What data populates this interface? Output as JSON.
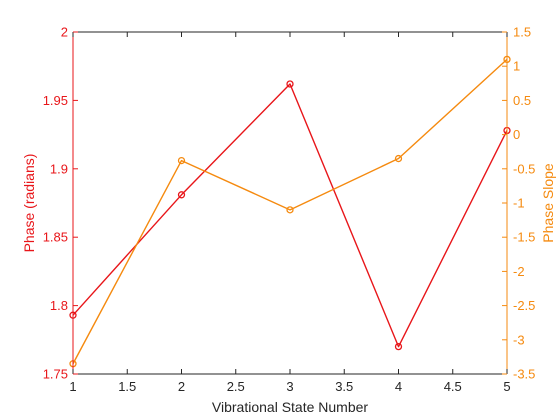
{
  "chart_data": {
    "type": "line",
    "xlabel": "Vibrational State Number",
    "x": [
      1,
      2,
      3,
      4,
      5
    ],
    "xlim": [
      1,
      5
    ],
    "xticks": [
      1,
      1.5,
      2,
      2.5,
      3,
      3.5,
      4,
      4.5,
      5
    ],
    "xtick_labels": [
      "1",
      "1.5",
      "2",
      "2.5",
      "3",
      "3.5",
      "4",
      "4.5",
      "5"
    ],
    "grid": false,
    "legend": "none",
    "left_axis": {
      "label": "Phase (radians)",
      "color": "#e8161a",
      "lim": [
        1.75,
        2
      ],
      "ticks": [
        1.75,
        1.8,
        1.85,
        1.9,
        1.95,
        2
      ],
      "tick_labels": [
        "1.75",
        "1.8",
        "1.85",
        "1.9",
        "1.95",
        "2"
      ]
    },
    "right_axis": {
      "label": "Phase Slope",
      "color": "#f58a0f",
      "lim": [
        -3.5,
        1.5
      ],
      "ticks": [
        -3.5,
        -3,
        -2.5,
        -2,
        -1.5,
        -1,
        -0.5,
        0,
        0.5,
        1,
        1.5
      ],
      "tick_labels": [
        "-3.5",
        "-3",
        "-2.5",
        "-2",
        "-1.5",
        "-1",
        "-0.5",
        "0",
        "0.5",
        "1",
        "1.5"
      ]
    },
    "series": [
      {
        "axis": "left",
        "color": "#e8161a",
        "marker": "circle",
        "values": [
          1.793,
          1.881,
          1.962,
          1.77,
          1.928
        ]
      },
      {
        "axis": "right",
        "color": "#f58a0f",
        "marker": "circle",
        "values": [
          -3.35,
          -0.38,
          -1.1,
          -0.35,
          1.1
        ]
      }
    ]
  }
}
